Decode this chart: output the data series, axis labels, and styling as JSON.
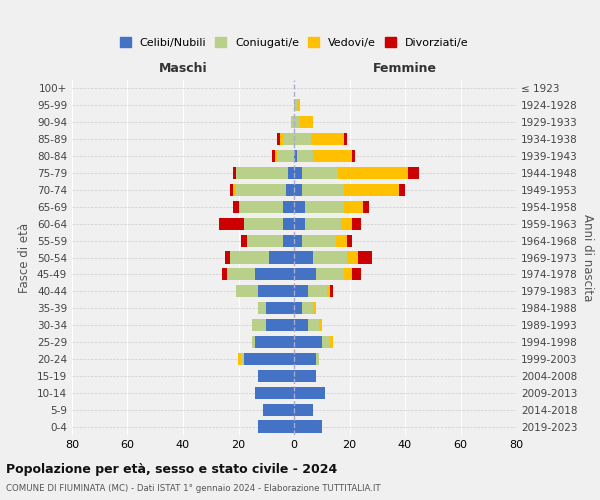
{
  "age_groups": [
    "0-4",
    "5-9",
    "10-14",
    "15-19",
    "20-24",
    "25-29",
    "30-34",
    "35-39",
    "40-44",
    "45-49",
    "50-54",
    "55-59",
    "60-64",
    "65-69",
    "70-74",
    "75-79",
    "80-84",
    "85-89",
    "90-94",
    "95-99",
    "100+"
  ],
  "birth_years": [
    "2019-2023",
    "2014-2018",
    "2009-2013",
    "2004-2008",
    "1999-2003",
    "1994-1998",
    "1989-1993",
    "1984-1988",
    "1979-1983",
    "1974-1978",
    "1969-1973",
    "1964-1968",
    "1959-1963",
    "1954-1958",
    "1949-1953",
    "1944-1948",
    "1939-1943",
    "1934-1938",
    "1929-1933",
    "1924-1928",
    "≤ 1923"
  ],
  "male": {
    "celibi": [
      13,
      11,
      14,
      13,
      18,
      14,
      10,
      10,
      13,
      14,
      9,
      4,
      4,
      4,
      3,
      2,
      0,
      0,
      0,
      0,
      0
    ],
    "coniugati": [
      0,
      0,
      0,
      0,
      1,
      1,
      5,
      3,
      8,
      10,
      14,
      13,
      14,
      16,
      18,
      19,
      6,
      4,
      1,
      0,
      0
    ],
    "vedovi": [
      0,
      0,
      0,
      0,
      1,
      0,
      0,
      0,
      0,
      0,
      0,
      0,
      0,
      0,
      1,
      0,
      1,
      1,
      0,
      0,
      0
    ],
    "divorziati": [
      0,
      0,
      0,
      0,
      0,
      0,
      0,
      0,
      0,
      2,
      2,
      2,
      9,
      2,
      1,
      1,
      1,
      1,
      0,
      0,
      0
    ]
  },
  "female": {
    "nubili": [
      10,
      7,
      11,
      8,
      8,
      10,
      5,
      3,
      5,
      8,
      7,
      3,
      4,
      4,
      3,
      3,
      1,
      0,
      0,
      0,
      0
    ],
    "coniugate": [
      0,
      0,
      0,
      0,
      1,
      3,
      4,
      4,
      7,
      10,
      12,
      12,
      13,
      14,
      15,
      13,
      6,
      6,
      2,
      1,
      0
    ],
    "vedove": [
      0,
      0,
      0,
      0,
      0,
      1,
      1,
      1,
      1,
      3,
      4,
      4,
      4,
      7,
      20,
      25,
      14,
      12,
      5,
      1,
      0
    ],
    "divorziate": [
      0,
      0,
      0,
      0,
      0,
      0,
      0,
      0,
      1,
      3,
      5,
      2,
      3,
      2,
      2,
      4,
      1,
      1,
      0,
      0,
      0
    ]
  },
  "colors": {
    "celibi": "#4472c4",
    "coniugati": "#b8d08a",
    "vedovi": "#ffc000",
    "divorziati": "#cc0000"
  },
  "title": "Popolazione per età, sesso e stato civile - 2024",
  "subtitle": "COMUNE DI FIUMINATA (MC) - Dati ISTAT 1° gennaio 2024 - Elaborazione TUTTITALIA.IT",
  "xlabel_left": "Maschi",
  "xlabel_right": "Femmine",
  "ylabel_left": "Fasce di età",
  "ylabel_right": "Anni di nascita",
  "xlim": 80,
  "legend_labels": [
    "Celibi/Nubili",
    "Coniugati/e",
    "Vedovi/e",
    "Divorziati/e"
  ],
  "bg_color": "#f0f0f0"
}
